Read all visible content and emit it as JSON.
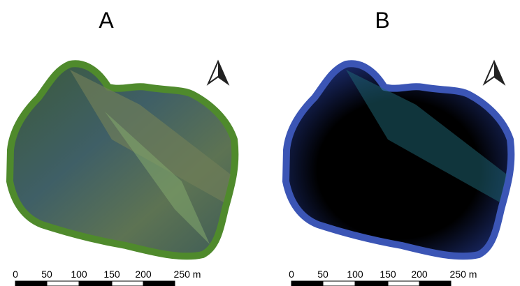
{
  "panels": [
    {
      "label": "A",
      "scale_labels": [
        "0",
        "50",
        "100",
        "150",
        "200",
        "250 m"
      ]
    },
    {
      "label": "B",
      "scale_labels": [
        "0",
        "50",
        "100",
        "150",
        "200",
        "250 m"
      ]
    }
  ]
}
